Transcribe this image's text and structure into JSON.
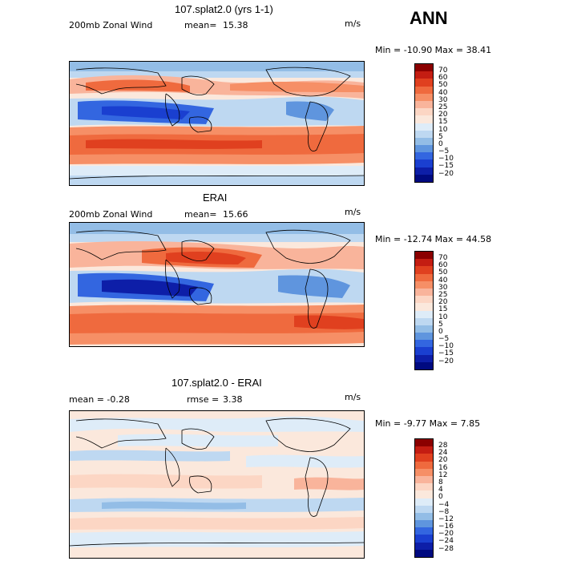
{
  "season": "ANN",
  "panels": [
    {
      "title": "107.splat2.0 (yrs 1-1)",
      "left_label": "200mb Zonal Wind",
      "stat_label": "mean=",
      "stat_value": "15.38",
      "units": "m/s",
      "minmax": "Min = -10.90 Max =  38.41",
      "colorbar_labels": [
        "70",
        "60",
        "50",
        "40",
        "30",
        "25",
        "20",
        "15",
        "10",
        "5",
        "0",
        "−5",
        "−10",
        "−15",
        "−20"
      ]
    },
    {
      "title": "ERAI",
      "left_label": "200mb Zonal Wind",
      "stat_label": "mean=",
      "stat_value": "15.66",
      "units": "m/s",
      "minmax": "Min = -12.74 Max =  44.58",
      "colorbar_labels": [
        "70",
        "60",
        "50",
        "40",
        "30",
        "25",
        "20",
        "15",
        "10",
        "5",
        "0",
        "−5",
        "−10",
        "−15",
        "−20"
      ]
    },
    {
      "title": "107.splat2.0 - ERAI",
      "left_label": "mean =  -0.28",
      "stat_label": "rmse =",
      "stat_value": "3.38",
      "units": "m/s",
      "minmax": "Min =  -9.77 Max =   7.85",
      "colorbar_labels": [
        "28",
        "24",
        "20",
        "16",
        "12",
        "8",
        "4",
        "0",
        "−4",
        "−8",
        "−12",
        "−16",
        "−20",
        "−24",
        "−28"
      ]
    }
  ],
  "colors": {
    "scale": [
      "#8b0000",
      "#c41d12",
      "#e0401f",
      "#ef6a3e",
      "#f68f66",
      "#f9b49b",
      "#fcd6c4",
      "#fbe8dc",
      "#deecf8",
      "#bed8f1",
      "#93bde6",
      "#5f95de",
      "#3366e0",
      "#1a3fd0",
      "#0d1ea8",
      "#000a80"
    ]
  }
}
